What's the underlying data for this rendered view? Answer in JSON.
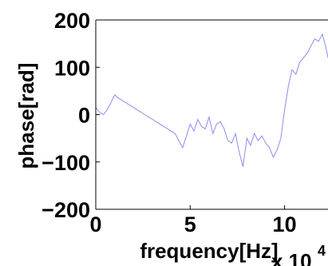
{
  "chart_data": {
    "type": "line",
    "title": "",
    "xlabel": "frequency[Hz]",
    "ylabel": "phase[rad]",
    "x_multiplier_label": {
      "base": "x 10",
      "exponent": "4"
    },
    "xlim": [
      0,
      12.3
    ],
    "ylim": [
      -200,
      200
    ],
    "x_ticks": [
      "0",
      "5",
      "10"
    ],
    "x_tick_values": [
      0,
      5,
      10
    ],
    "y_ticks": [
      "200",
      "100",
      "0",
      "−100",
      "−200"
    ],
    "y_tick_values": [
      200,
      100,
      0,
      -100,
      -200
    ],
    "grid": false,
    "line_color": "#8c8cf0",
    "series": [
      {
        "x": [
          0,
          0.2,
          0.4,
          0.6,
          0.8,
          1.0,
          1.2,
          1.6,
          2.2,
          2.8,
          3.4,
          4.0,
          4.2,
          4.4,
          4.6,
          4.8,
          5.0,
          5.2,
          5.4,
          5.6,
          5.8,
          6.0,
          6.2,
          6.4,
          6.6,
          6.8,
          7.0,
          7.2,
          7.4,
          7.6,
          7.8,
          8.0,
          8.2,
          8.4,
          8.6,
          8.8,
          9.0,
          9.2,
          9.4,
          9.6,
          9.8,
          10.0,
          10.2,
          10.4,
          10.6,
          10.8,
          11.0,
          11.2,
          11.4,
          11.6,
          11.8,
          12.0,
          12.2,
          12.3
        ],
        "values": [
          15,
          5,
          0,
          10,
          25,
          42,
          35,
          25,
          10,
          -5,
          -20,
          -35,
          -40,
          -55,
          -70,
          -45,
          -20,
          -35,
          -10,
          -25,
          -30,
          -5,
          -40,
          -20,
          -15,
          -30,
          -55,
          -60,
          -40,
          -80,
          -110,
          -50,
          -65,
          -40,
          -55,
          -45,
          -60,
          -70,
          -90,
          -75,
          -50,
          10,
          60,
          95,
          85,
          110,
          120,
          130,
          145,
          160,
          155,
          170,
          140,
          120
        ]
      }
    ]
  }
}
